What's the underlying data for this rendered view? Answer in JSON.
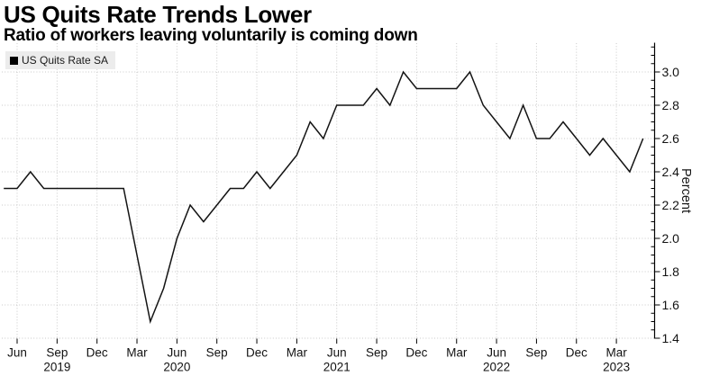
{
  "header": {
    "title": "US Quits Rate Trends Lower",
    "subtitle": "Ratio of workers leaving voluntarily is coming down"
  },
  "legend": {
    "label": "US Quits Rate SA",
    "swatch_color": "#000000"
  },
  "chart_data": {
    "type": "line",
    "title": "US Quits Rate Trends Lower",
    "subtitle": "Ratio of workers leaving voluntarily is coming down",
    "ylabel": "Percent",
    "ylim": [
      1.4,
      3.17
    ],
    "y_axis_side": "right",
    "grid": true,
    "grid_style": "dotted",
    "legend_position": "top-left",
    "line_color": "#141414",
    "background_color": "#ffffff",
    "yticks": [
      1.4,
      1.6,
      1.8,
      2.0,
      2.2,
      2.4,
      2.6,
      2.8,
      3.0
    ],
    "y_minor_tick_step": 0.05,
    "xticks": [
      {
        "month": "Jun",
        "year": "",
        "i": 1
      },
      {
        "month": "Sep",
        "year": "2019",
        "i": 4
      },
      {
        "month": "Dec",
        "year": "",
        "i": 7
      },
      {
        "month": "Mar",
        "year": "",
        "i": 10
      },
      {
        "month": "Jun",
        "year": "2020",
        "i": 13
      },
      {
        "month": "Sep",
        "year": "",
        "i": 16
      },
      {
        "month": "Dec",
        "year": "",
        "i": 19
      },
      {
        "month": "Mar",
        "year": "",
        "i": 22
      },
      {
        "month": "Jun",
        "year": "2021",
        "i": 25
      },
      {
        "month": "Sep",
        "year": "",
        "i": 28
      },
      {
        "month": "Dec",
        "year": "",
        "i": 31
      },
      {
        "month": "Mar",
        "year": "",
        "i": 34
      },
      {
        "month": "Jun",
        "year": "2022",
        "i": 37
      },
      {
        "month": "Sep",
        "year": "",
        "i": 40
      },
      {
        "month": "Dec",
        "year": "",
        "i": 43
      },
      {
        "month": "Mar",
        "year": "2023",
        "i": 46
      }
    ],
    "series": [
      {
        "name": "US Quits Rate SA",
        "x": [
          "May 2019",
          "Jun 2019",
          "Jul 2019",
          "Aug 2019",
          "Sep 2019",
          "Oct 2019",
          "Nov 2019",
          "Dec 2019",
          "Jan 2020",
          "Feb 2020",
          "Mar 2020",
          "Apr 2020",
          "May 2020",
          "Jun 2020",
          "Jul 2020",
          "Aug 2020",
          "Sep 2020",
          "Oct 2020",
          "Nov 2020",
          "Dec 2020",
          "Jan 2021",
          "Feb 2021",
          "Mar 2021",
          "Apr 2021",
          "May 2021",
          "Jun 2021",
          "Jul 2021",
          "Aug 2021",
          "Sep 2021",
          "Oct 2021",
          "Nov 2021",
          "Dec 2021",
          "Jan 2022",
          "Feb 2022",
          "Mar 2022",
          "Apr 2022",
          "May 2022",
          "Jun 2022",
          "Jul 2022",
          "Aug 2022",
          "Sep 2022",
          "Oct 2022",
          "Nov 2022",
          "Dec 2022",
          "Jan 2023",
          "Feb 2023",
          "Mar 2023",
          "Apr 2023",
          "May 2023"
        ],
        "values": [
          2.3,
          2.3,
          2.4,
          2.3,
          2.3,
          2.3,
          2.3,
          2.3,
          2.3,
          2.3,
          1.9,
          1.5,
          1.7,
          2.0,
          2.2,
          2.1,
          2.2,
          2.3,
          2.3,
          2.4,
          2.3,
          2.4,
          2.5,
          2.7,
          2.6,
          2.8,
          2.8,
          2.8,
          2.9,
          2.8,
          3.0,
          2.9,
          2.9,
          2.9,
          2.9,
          3.0,
          2.8,
          2.7,
          2.6,
          2.8,
          2.6,
          2.6,
          2.7,
          2.6,
          2.5,
          2.6,
          2.5,
          2.4,
          2.6
        ]
      }
    ]
  }
}
